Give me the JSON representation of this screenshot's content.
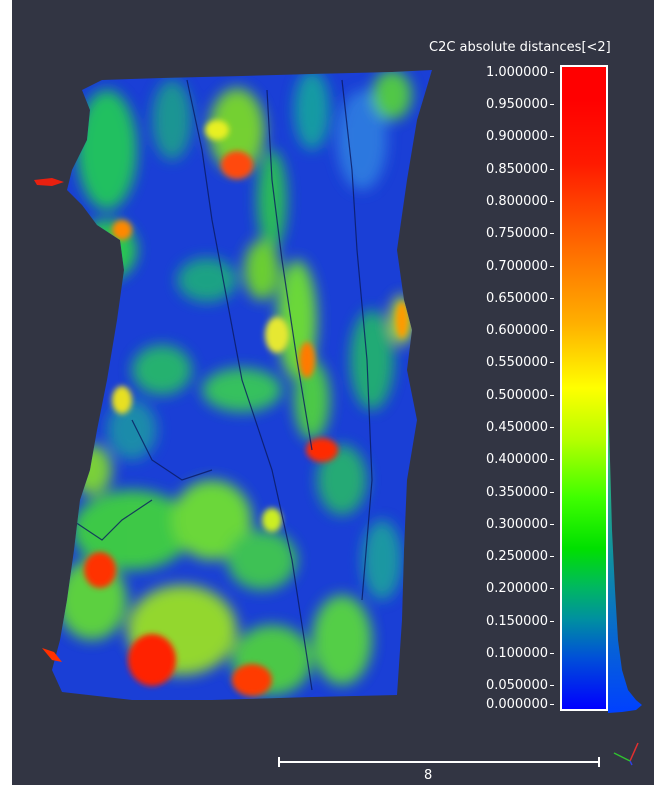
{
  "colorbar": {
    "title": "C2C absolute distances[<2]",
    "ticks": [
      "1.000000",
      "0.950000",
      "0.900000",
      "0.850000",
      "0.800000",
      "0.750000",
      "0.700000",
      "0.650000",
      "0.600000",
      "0.550000",
      "0.500000",
      "0.450000",
      "0.400000",
      "0.350000",
      "0.300000",
      "0.250000",
      "0.200000",
      "0.150000",
      "0.100000",
      "0.050000",
      "0.000000"
    ],
    "colors": [
      "#ff0000",
      "#ffff00",
      "#00ff00",
      "#0000ff"
    ]
  },
  "scale": {
    "label": "8"
  },
  "viewport": {
    "background": "#323543"
  }
}
